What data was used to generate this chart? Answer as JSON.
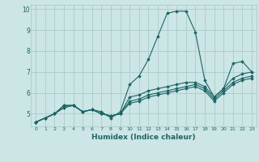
{
  "title": "",
  "xlabel": "Humidex (Indice chaleur)",
  "ylabel": "",
  "bg_color": "#cce5e5",
  "grid_color": "#aacccc",
  "line_color": "#1a6666",
  "xlim": [
    -0.5,
    23.5
  ],
  "ylim": [
    4.4,
    10.2
  ],
  "yticks": [
    5,
    6,
    7,
    8,
    9,
    10
  ],
  "xticks": [
    0,
    1,
    2,
    3,
    4,
    5,
    6,
    7,
    8,
    9,
    10,
    11,
    12,
    13,
    14,
    15,
    16,
    17,
    18,
    19,
    20,
    21,
    22,
    23
  ],
  "series": [
    [
      4.6,
      4.8,
      5.0,
      5.4,
      5.4,
      5.1,
      5.2,
      5.1,
      4.8,
      5.1,
      6.4,
      6.8,
      7.6,
      8.7,
      9.8,
      9.9,
      9.9,
      8.9,
      6.6,
      5.8,
      6.2,
      7.4,
      7.5,
      7.0
    ],
    [
      4.6,
      4.8,
      5.0,
      5.3,
      5.4,
      5.1,
      5.2,
      5.0,
      4.9,
      5.0,
      5.8,
      5.9,
      6.1,
      6.2,
      6.3,
      6.4,
      6.5,
      6.5,
      6.3,
      5.8,
      6.2,
      6.7,
      6.9,
      7.0
    ],
    [
      4.6,
      4.8,
      5.0,
      5.3,
      5.4,
      5.1,
      5.2,
      5.0,
      4.9,
      5.0,
      5.6,
      5.7,
      5.9,
      6.0,
      6.1,
      6.2,
      6.3,
      6.4,
      6.2,
      5.7,
      6.1,
      6.5,
      6.7,
      6.8
    ],
    [
      4.6,
      4.8,
      5.0,
      5.4,
      5.4,
      5.1,
      5.2,
      5.0,
      4.9,
      5.0,
      5.5,
      5.6,
      5.8,
      5.9,
      6.0,
      6.1,
      6.2,
      6.3,
      6.1,
      5.6,
      6.0,
      6.4,
      6.6,
      6.7
    ]
  ],
  "marker": "D",
  "markersize": 1.8,
  "linewidth": 0.8
}
